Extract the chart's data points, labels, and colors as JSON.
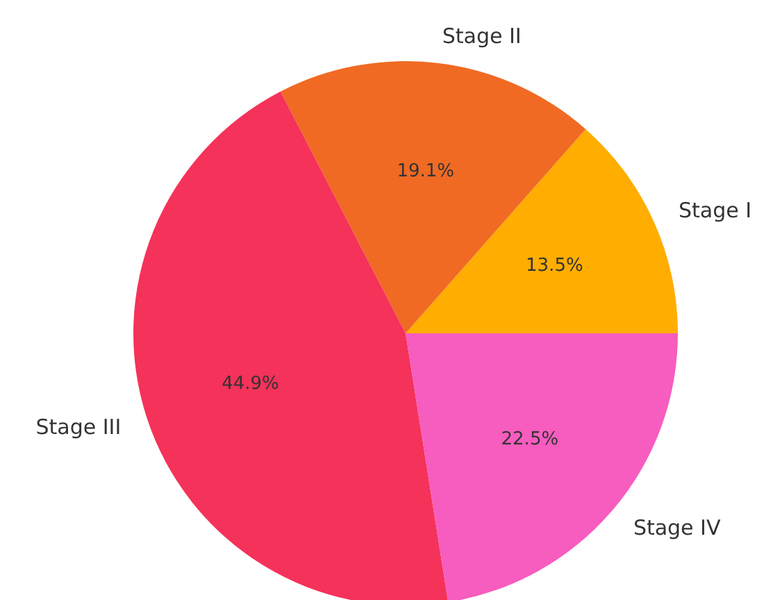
{
  "chart_data": {
    "type": "pie",
    "categories": [
      "Stage I",
      "Stage II",
      "Stage III",
      "Stage IV"
    ],
    "values": [
      13.5,
      19.1,
      44.9,
      22.5
    ],
    "colors": [
      "#ffad00",
      "#f06a24",
      "#f5325a",
      "#f75cbf"
    ],
    "value_labels": [
      "13.5%",
      "19.1%",
      "44.9%",
      "22.5%"
    ]
  }
}
